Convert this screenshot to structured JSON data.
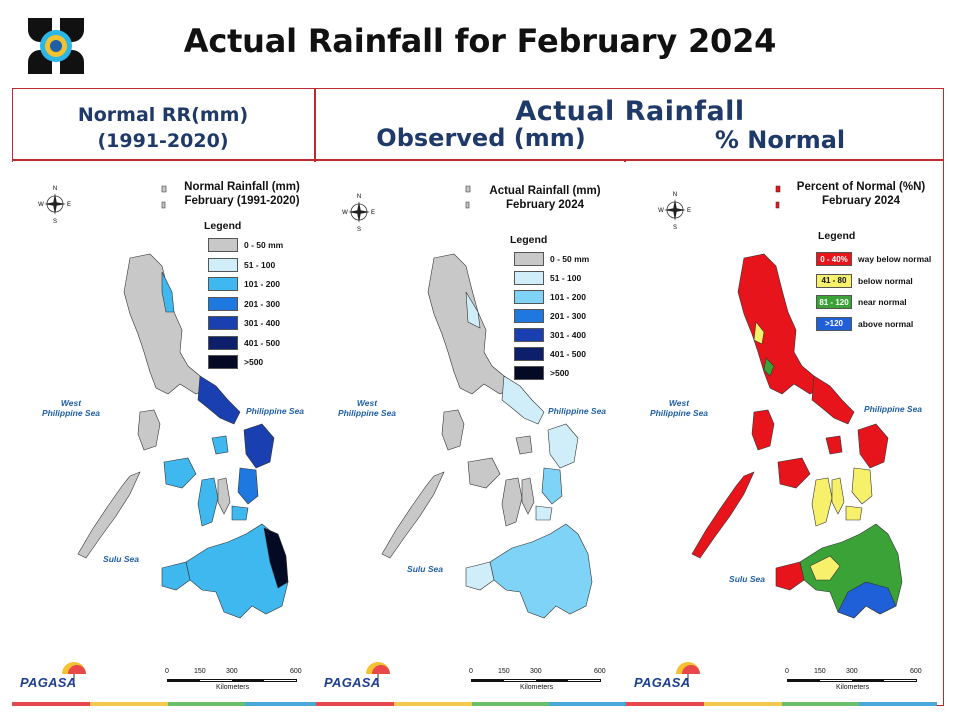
{
  "title": "Actual Rainfall for February 2024",
  "headers": {
    "normal_line1": "Normal RR(mm)",
    "normal_line2": "(1991-2020)",
    "actual": "Actual Rainfall",
    "observed": "Observed (mm)",
    "percent": "% Normal"
  },
  "panels": [
    {
      "title_line1": "Normal Rainfall (mm)",
      "title_line2": "February (1991-2020)",
      "legend_title": "Legend",
      "legend": [
        {
          "label": "0 - 50 mm",
          "color": "#c8c8c8"
        },
        {
          "label": "51 - 100",
          "color": "#cfeefa"
        },
        {
          "label": "101 - 200",
          "color": "#3fb8ef"
        },
        {
          "label": "201 - 300",
          "color": "#1f78e0"
        },
        {
          "label": "301 - 400",
          "color": "#1a3fb0"
        },
        {
          "label": "401 - 500",
          "color": "#0d1f6b"
        },
        {
          "label": ">500",
          "color": "#040a24"
        }
      ]
    },
    {
      "title_line1": "Actual Rainfall (mm)",
      "title_line2": "February 2024",
      "legend_title": "Legend",
      "legend": [
        {
          "label": "0 - 50 mm",
          "color": "#c8c8c8"
        },
        {
          "label": "51 - 100",
          "color": "#cfeefa"
        },
        {
          "label": "101 - 200",
          "color": "#7fd3f6"
        },
        {
          "label": "201 - 300",
          "color": "#1f78e0"
        },
        {
          "label": "301 - 400",
          "color": "#1a3fb0"
        },
        {
          "label": "401 - 500",
          "color": "#0d1f6b"
        },
        {
          "label": ">500",
          "color": "#040a24"
        }
      ]
    },
    {
      "title_line1": "Percent of Normal (%N)",
      "title_line2": "February 2024",
      "legend_title": "Legend",
      "legend": [
        {
          "range": "0 - 40%",
          "label": "way below normal",
          "color": "#e8141b"
        },
        {
          "range": "41 - 80",
          "label": "below normal",
          "color": "#f6f06a"
        },
        {
          "range": "81 - 120",
          "label": "near normal",
          "color": "#3aa236"
        },
        {
          "range": ">120",
          "label": "above normal",
          "color": "#1f5fd8"
        }
      ]
    }
  ],
  "seas": {
    "west": "West\nPhilippine Sea",
    "east": "Philippine Sea",
    "sulu": "Sulu Sea"
  },
  "scale": {
    "ticks": [
      "0",
      "150",
      "300",
      "600"
    ],
    "unit": "Kilometers"
  },
  "compass": {
    "n": "N",
    "s": "S",
    "e": "E",
    "w": "W"
  },
  "brand": "PAGASA",
  "colors": {
    "frame": "#c0292f",
    "header_text": "#1f3a68",
    "strip": [
      "#e8474c",
      "#f2c94c",
      "#6cbf6a",
      "#4aa8d8"
    ]
  }
}
